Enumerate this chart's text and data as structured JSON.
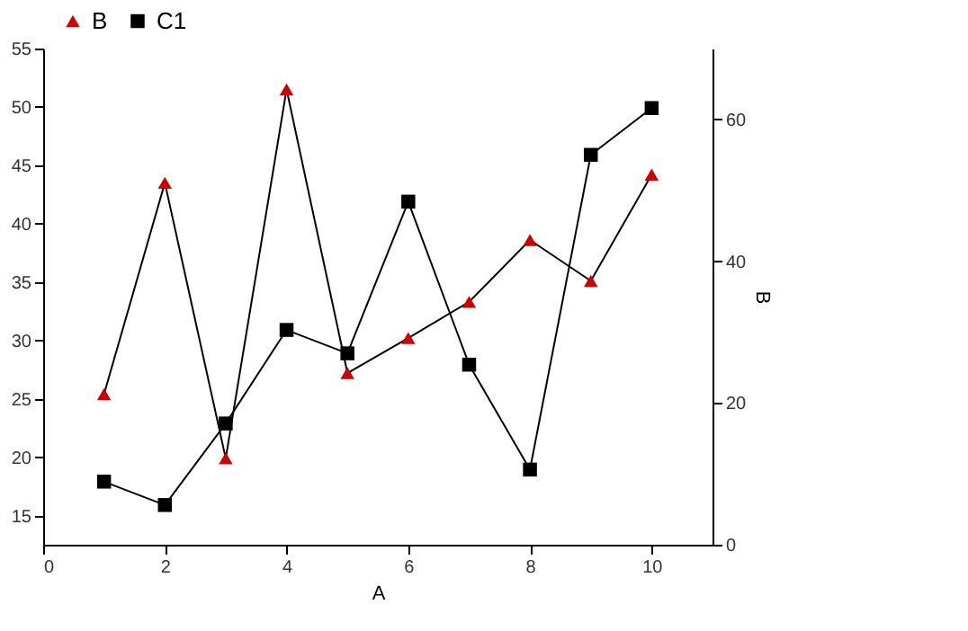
{
  "chart_data": {
    "type": "line",
    "xlabel": "A",
    "y2label": "B",
    "x": [
      1,
      2,
      3,
      4,
      5,
      6,
      7,
      8,
      9,
      10
    ],
    "xlim": [
      0,
      11
    ],
    "xticks": [
      0,
      2,
      4,
      6,
      8,
      10
    ],
    "ylim": [
      12.5,
      55
    ],
    "yticks": [
      15,
      20,
      25,
      30,
      35,
      40,
      45,
      50,
      55
    ],
    "y2lim": [
      0,
      70
    ],
    "y2ticks": [
      0,
      20,
      40,
      60
    ],
    "series": [
      {
        "name": "B",
        "color": "#cc0000",
        "marker": "triangle",
        "values": [
          25.4,
          43.5,
          19.9,
          51.5,
          27.2,
          30.2,
          33.3,
          38.6,
          35.1,
          44.2
        ]
      },
      {
        "name": "C1",
        "color": "#000000",
        "marker": "square",
        "axis": "y2",
        "values": [
          8.9,
          5.6,
          17.1,
          30.3,
          27.0,
          48.4,
          25.4,
          10.6,
          55.0,
          61.6
        ]
      }
    ],
    "legend": "top left",
    "grid": false,
    "line_style": "solid"
  }
}
